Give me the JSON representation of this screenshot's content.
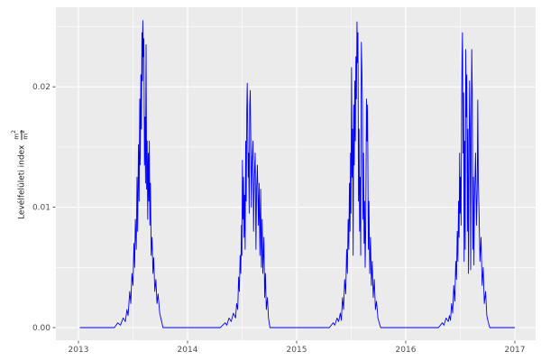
{
  "figure": {
    "ylabel": {
      "text": "Levélfelületi index",
      "num_base": "m",
      "num_exp": "2",
      "den_base": "m",
      "den_exp": "2"
    },
    "colors": {
      "figure_bg": "#FFFFFF",
      "panel_bg": "#EBEBEB",
      "grid_major": "#FFFFFF",
      "grid_minor": "#FFFFFF",
      "line": "#0000FF",
      "tick_text": "#4D4D4D",
      "tick_mark": "#333333",
      "axis_title": "#1A1A1A"
    }
  },
  "chart_data": {
    "type": "line",
    "title": "",
    "xlabel": "",
    "ylabel": "Levélfelületi index (m²/m²)",
    "grid": true,
    "legend": false,
    "xlim": [
      2012.7934,
      2017.1901
    ],
    "ylim": [
      -0.00105,
      0.026612
    ],
    "x_ticks": {
      "values": [
        2013,
        2014,
        2015,
        2016,
        2017
      ],
      "labels": [
        "2013",
        "2014",
        "2015",
        "2016",
        "2017"
      ]
    },
    "y_ticks": {
      "values": [
        0,
        0.01,
        0.02
      ],
      "labels": [
        "0.00",
        "0.01",
        "0.02"
      ]
    },
    "x_minor": [
      2013.5,
      2014.5,
      2015.5,
      2016.5
    ],
    "y_minor": [
      0.005,
      0.015,
      0.025
    ],
    "series": [
      {
        "name": "Levélfelületi index",
        "color": "#0000FF",
        "points": [
          [
            2013.012,
            0
          ],
          [
            2013.25,
            0
          ],
          [
            2013.33,
            0
          ],
          [
            2013.36,
            0.0004
          ],
          [
            2013.385,
            0.0002
          ],
          [
            2013.41,
            0.0008
          ],
          [
            2013.43,
            0.0005
          ],
          [
            2013.445,
            0.0015
          ],
          [
            2013.455,
            0.001
          ],
          [
            2013.47,
            0.003
          ],
          [
            2013.48,
            0.002
          ],
          [
            2013.49,
            0.0045
          ],
          [
            2013.5,
            0.0035
          ],
          [
            2013.508,
            0.007
          ],
          [
            2013.515,
            0.005
          ],
          [
            2013.522,
            0.009
          ],
          [
            2013.53,
            0.0065
          ],
          [
            2013.537,
            0.0125
          ],
          [
            2013.543,
            0.008
          ],
          [
            2013.55,
            0.0152
          ],
          [
            2013.556,
            0.0105
          ],
          [
            2013.562,
            0.019
          ],
          [
            2013.567,
            0.0135
          ],
          [
            2013.572,
            0.021
          ],
          [
            2013.577,
            0.0165
          ],
          [
            2013.582,
            0.0245
          ],
          [
            2013.587,
            0.0205
          ],
          [
            2013.59,
            0.0255
          ],
          [
            2013.595,
            0.0225
          ],
          [
            2013.6,
            0.024
          ],
          [
            2013.605,
            0.0135
          ],
          [
            2013.61,
            0.0175
          ],
          [
            2013.615,
            0.012
          ],
          [
            2013.62,
            0.0235
          ],
          [
            2013.625,
            0.0115
          ],
          [
            2013.63,
            0.0155
          ],
          [
            2013.635,
            0.009
          ],
          [
            2013.64,
            0.0145
          ],
          [
            2013.645,
            0.0105
          ],
          [
            2013.65,
            0.0155
          ],
          [
            2013.655,
            0.0085
          ],
          [
            2013.66,
            0.012
          ],
          [
            2013.667,
            0.006
          ],
          [
            2013.675,
            0.0075
          ],
          [
            2013.683,
            0.0045
          ],
          [
            2013.69,
            0.0058
          ],
          [
            2013.7,
            0.003
          ],
          [
            2013.71,
            0.004
          ],
          [
            2013.72,
            0.002
          ],
          [
            2013.73,
            0.0028
          ],
          [
            2013.745,
            0.0012
          ],
          [
            2013.76,
            0.0006
          ],
          [
            2013.775,
            0
          ],
          [
            2013.9,
            0
          ],
          [
            2014.1,
            0
          ],
          [
            2014.3,
            0
          ],
          [
            2014.345,
            0.0004
          ],
          [
            2014.36,
            0.0002
          ],
          [
            2014.38,
            0.0008
          ],
          [
            2014.4,
            0.0005
          ],
          [
            2014.42,
            0.0012
          ],
          [
            2014.44,
            0.0008
          ],
          [
            2014.45,
            0.002
          ],
          [
            2014.46,
            0.0015
          ],
          [
            2014.468,
            0.0042
          ],
          [
            2014.475,
            0.003
          ],
          [
            2014.482,
            0.006
          ],
          [
            2014.488,
            0.0045
          ],
          [
            2014.494,
            0.0085
          ],
          [
            2014.498,
            0.006
          ],
          [
            2014.503,
            0.0139
          ],
          [
            2014.508,
            0.009
          ],
          [
            2014.513,
            0.0125
          ],
          [
            2014.518,
            0.0075
          ],
          [
            2014.523,
            0.011
          ],
          [
            2014.528,
            0.0065
          ],
          [
            2014.533,
            0.0155
          ],
          [
            2014.538,
            0.0105
          ],
          [
            2014.543,
            0.018
          ],
          [
            2014.547,
            0.0203
          ],
          [
            2014.552,
            0.016
          ],
          [
            2014.556,
            0.0125
          ],
          [
            2014.56,
            0.0145
          ],
          [
            2014.565,
            0.0095
          ],
          [
            2014.57,
            0.0185
          ],
          [
            2014.575,
            0.0197
          ],
          [
            2014.58,
            0.0155
          ],
          [
            2014.585,
            0.01
          ],
          [
            2014.59,
            0.0135
          ],
          [
            2014.6,
            0.0155
          ],
          [
            2014.605,
            0.008
          ],
          [
            2014.612,
            0.0125
          ],
          [
            2014.62,
            0.0145
          ],
          [
            2014.627,
            0.0065
          ],
          [
            2014.633,
            0.0115
          ],
          [
            2014.64,
            0.0135
          ],
          [
            2014.65,
            0.0085
          ],
          [
            2014.656,
            0.012
          ],
          [
            2014.663,
            0.006
          ],
          [
            2014.67,
            0.0115
          ],
          [
            2014.677,
            0.005
          ],
          [
            2014.684,
            0.009
          ],
          [
            2014.69,
            0.0045
          ],
          [
            2014.7,
            0.0075
          ],
          [
            2014.707,
            0.0025
          ],
          [
            2014.714,
            0.0045
          ],
          [
            2014.722,
            0.0015
          ],
          [
            2014.732,
            0.0025
          ],
          [
            2014.742,
            0.0008
          ],
          [
            2014.755,
            0
          ],
          [
            2014.9,
            0
          ],
          [
            2015.1,
            0
          ],
          [
            2015.3,
            0
          ],
          [
            2015.335,
            0.0004
          ],
          [
            2015.35,
            0.0002
          ],
          [
            2015.37,
            0.0008
          ],
          [
            2015.385,
            0.0005
          ],
          [
            2015.4,
            0.0012
          ],
          [
            2015.41,
            0.0006
          ],
          [
            2015.42,
            0.0025
          ],
          [
            2015.43,
            0.0015
          ],
          [
            2015.44,
            0.004
          ],
          [
            2015.45,
            0.0028
          ],
          [
            2015.458,
            0.0065
          ],
          [
            2015.465,
            0.0045
          ],
          [
            2015.472,
            0.009
          ],
          [
            2015.478,
            0.0065
          ],
          [
            2015.484,
            0.012
          ],
          [
            2015.489,
            0.008
          ],
          [
            2015.494,
            0.0145
          ],
          [
            2015.498,
            0.0095
          ],
          [
            2015.503,
            0.0216
          ],
          [
            2015.508,
            0.0125
          ],
          [
            2015.513,
            0.0165
          ],
          [
            2015.518,
            0.006
          ],
          [
            2015.523,
            0.0185
          ],
          [
            2015.528,
            0.0135
          ],
          [
            2015.533,
            0.0205
          ],
          [
            2015.538,
            0.0155
          ],
          [
            2015.543,
            0.0225
          ],
          [
            2015.548,
            0.019
          ],
          [
            2015.553,
            0.0254
          ],
          [
            2015.558,
            0.022
          ],
          [
            2015.562,
            0.0245
          ],
          [
            2015.567,
            0.0105
          ],
          [
            2015.572,
            0.0165
          ],
          [
            2015.577,
            0.008
          ],
          [
            2015.582,
            0.0125
          ],
          [
            2015.587,
            0.006
          ],
          [
            2015.593,
            0.0237
          ],
          [
            2015.598,
            0.0215
          ],
          [
            2015.603,
            0.0185
          ],
          [
            2015.608,
            0.009
          ],
          [
            2015.613,
            0.0145
          ],
          [
            2015.618,
            0.007
          ],
          [
            2015.623,
            0.0105
          ],
          [
            2015.628,
            0.005
          ],
          [
            2015.633,
            0.008
          ],
          [
            2015.64,
            0.019
          ],
          [
            2015.645,
            0.0155
          ],
          [
            2015.65,
            0.0185
          ],
          [
            2015.657,
            0.0065
          ],
          [
            2015.663,
            0.0105
          ],
          [
            2015.67,
            0.0045
          ],
          [
            2015.677,
            0.0075
          ],
          [
            2015.685,
            0.0035
          ],
          [
            2015.693,
            0.0055
          ],
          [
            2015.702,
            0.0025
          ],
          [
            2015.712,
            0.004
          ],
          [
            2015.722,
            0.0015
          ],
          [
            2015.732,
            0.0022
          ],
          [
            2015.745,
            0.0008
          ],
          [
            2015.757,
            0.0004
          ],
          [
            2015.77,
            0
          ],
          [
            2015.9,
            0
          ],
          [
            2016.1,
            0
          ],
          [
            2016.3,
            0
          ],
          [
            2016.335,
            0.0004
          ],
          [
            2016.35,
            0.0002
          ],
          [
            2016.37,
            0.0008
          ],
          [
            2016.39,
            0.0005
          ],
          [
            2016.4,
            0.001
          ],
          [
            2016.41,
            0.0006
          ],
          [
            2016.42,
            0.002
          ],
          [
            2016.43,
            0.0012
          ],
          [
            2016.44,
            0.0035
          ],
          [
            2016.45,
            0.0022
          ],
          [
            2016.458,
            0.0055
          ],
          [
            2016.465,
            0.004
          ],
          [
            2016.472,
            0.008
          ],
          [
            2016.478,
            0.0055
          ],
          [
            2016.484,
            0.0105
          ],
          [
            2016.489,
            0.0075
          ],
          [
            2016.494,
            0.0145
          ],
          [
            2016.498,
            0.0095
          ],
          [
            2016.503,
            0.0125
          ],
          [
            2016.507,
            0.0085
          ],
          [
            2016.512,
            0.0185
          ],
          [
            2016.516,
            0.0225
          ],
          [
            2016.52,
            0.0245
          ],
          [
            2016.525,
            0.0145
          ],
          [
            2016.53,
            0.0195
          ],
          [
            2016.535,
            0.0055
          ],
          [
            2016.54,
            0.0155
          ],
          [
            2016.545,
            0.0065
          ],
          [
            2016.55,
            0.0231
          ],
          [
            2016.555,
            0.0175
          ],
          [
            2016.56,
            0.021
          ],
          [
            2016.565,
            0.008
          ],
          [
            2016.57,
            0.0165
          ],
          [
            2016.575,
            0.0045
          ],
          [
            2016.58,
            0.0135
          ],
          [
            2016.585,
            0.0205
          ],
          [
            2016.59,
            0.0165
          ],
          [
            2016.595,
            0.0048
          ],
          [
            2016.6,
            0.0155
          ],
          [
            2016.605,
            0.0231
          ],
          [
            2016.61,
            0.0195
          ],
          [
            2016.615,
            0.0065
          ],
          [
            2016.62,
            0.0125
          ],
          [
            2016.625,
            0.0052
          ],
          [
            2016.63,
            0.0105
          ],
          [
            2016.64,
            0.0145
          ],
          [
            2016.648,
            0.0085
          ],
          [
            2016.655,
            0.0115
          ],
          [
            2016.66,
            0.0189
          ],
          [
            2016.665,
            0.0125
          ],
          [
            2016.672,
            0.0095
          ],
          [
            2016.68,
            0.0055
          ],
          [
            2016.69,
            0.0075
          ],
          [
            2016.7,
            0.0035
          ],
          [
            2016.71,
            0.005
          ],
          [
            2016.72,
            0.002
          ],
          [
            2016.732,
            0.003
          ],
          [
            2016.743,
            0.001
          ],
          [
            2016.755,
            0.0005
          ],
          [
            2016.77,
            0
          ],
          [
            2016.85,
            0
          ],
          [
            2016.95,
            0
          ],
          [
            2017.0,
            0
          ]
        ]
      }
    ]
  }
}
